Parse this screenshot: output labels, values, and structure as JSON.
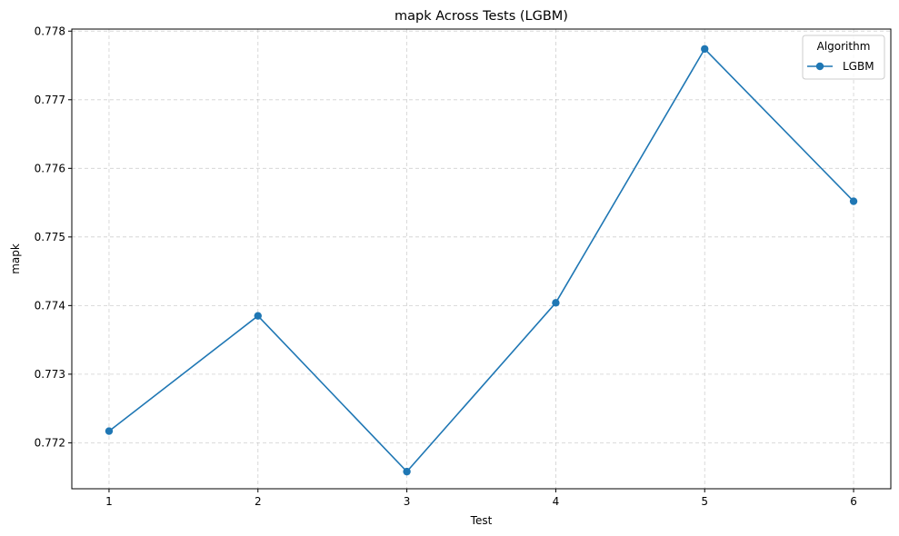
{
  "chart_data": {
    "type": "line",
    "title": "mapk Across Tests (LGBM)",
    "xlabel": "Test",
    "ylabel": "mapk",
    "x": [
      1,
      2,
      3,
      4,
      5,
      6
    ],
    "x_ticks": [
      "1",
      "2",
      "3",
      "4",
      "5",
      "6"
    ],
    "y_ticks": [
      "0.772",
      "0.773",
      "0.774",
      "0.775",
      "0.776",
      "0.777",
      "0.778"
    ],
    "xlim": [
      0.75,
      6.25
    ],
    "ylim": [
      0.77133,
      0.77803
    ],
    "grid": true,
    "grid_style": "dashed",
    "legend": {
      "title": "Algorithm",
      "placement": "upper-right"
    },
    "series": [
      {
        "name": "LGBM",
        "color": "#1f77b4",
        "marker": "circle",
        "values": [
          0.77217,
          0.77385,
          0.77158,
          0.77404,
          0.77774,
          0.77552
        ]
      }
    ]
  }
}
